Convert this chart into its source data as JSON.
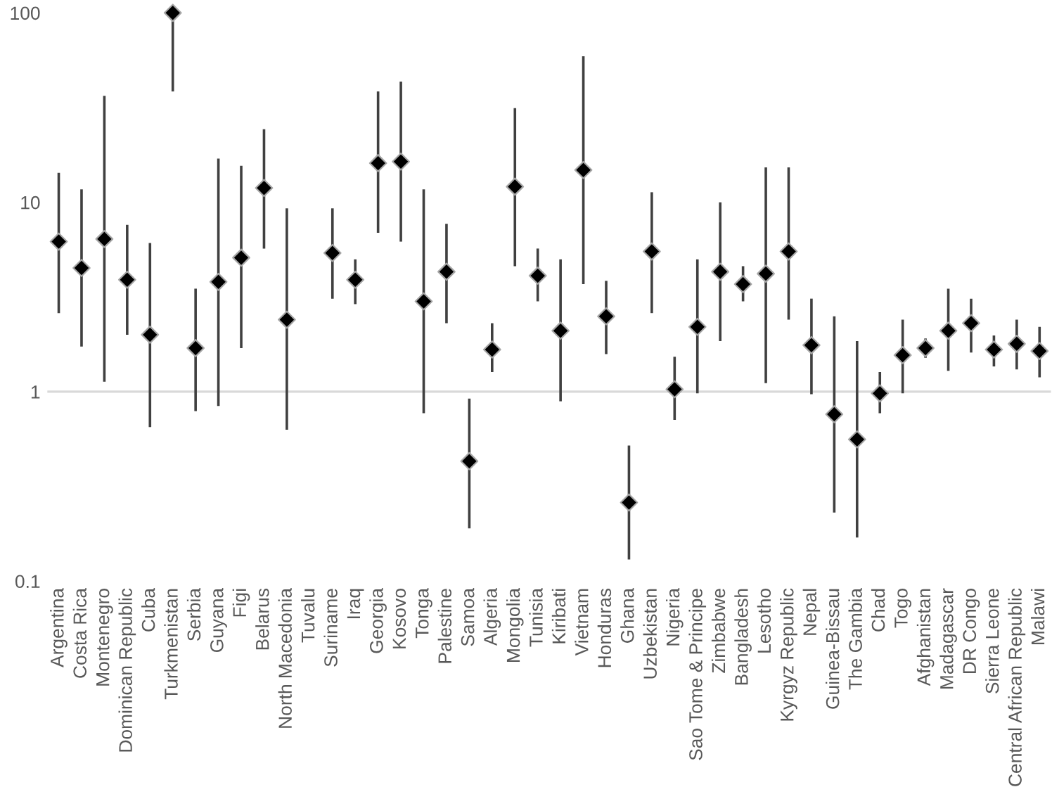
{
  "chart_data": {
    "type": "scatter",
    "categories": [
      "Argentina",
      "Costa Rica",
      "Montenegro",
      "Dominican Republic",
      "Cuba",
      "Turkmenistan",
      "Serbia",
      "Guyana",
      "Figi",
      "Belarus",
      "North Macedonia",
      "Tuvalu",
      "Suriname",
      "Iraq",
      "Georgia",
      "Kosovo",
      "Tonga",
      "Palestine",
      "Samoa",
      "Algeria",
      "Mongolia",
      "Tunisia",
      "Kiribati",
      "Vietnam",
      "Honduras",
      "Ghana",
      "Uzbekistan",
      "Nigeria",
      "Sao Tome & Principe",
      "Zimbabwe",
      "Bangladesh",
      "Lesotho",
      "Kyrgyz Republic",
      "Nepal",
      "Guinea-Bissau",
      "The Gambia",
      "Chad",
      "Togo",
      "Afghanistan",
      "Madagascar",
      "DR Congo",
      "Sierra Leone",
      "Central African Republic",
      "Malawi"
    ],
    "series": [
      {
        "color": "#000000",
        "values": [
          6.2,
          4.5,
          6.4,
          3.9,
          2.0,
          100,
          1.7,
          3.8,
          5.1,
          11.9,
          2.4,
          null,
          5.4,
          3.9,
          16.1,
          16.4,
          3.0,
          4.3,
          0.43,
          1.67,
          12.1,
          4.1,
          2.1,
          14.8,
          2.5,
          0.26,
          5.5,
          1.03,
          2.2,
          4.3,
          3.7,
          4.2,
          5.5,
          1.76,
          0.76,
          0.56,
          0.98,
          1.56,
          1.7,
          2.1,
          2.3,
          1.67,
          1.79,
          1.64
        ],
        "errors": [
          [
            2.6,
            14.3
          ],
          [
            1.73,
            11.7
          ],
          [
            1.13,
            36.5
          ],
          [
            2.0,
            7.6
          ],
          [
            0.65,
            6.1
          ],
          [
            38.5,
            100
          ],
          [
            0.79,
            3.5
          ],
          [
            0.84,
            17
          ],
          [
            1.7,
            15.6
          ],
          [
            5.7,
            24.3
          ],
          [
            0.63,
            9.3
          ],
          null,
          [
            3.1,
            9.3
          ],
          [
            2.9,
            5.0
          ],
          [
            6.9,
            38.5
          ],
          [
            6.2,
            43.4
          ],
          [
            0.77,
            11.7
          ],
          [
            2.3,
            7.7
          ],
          [
            0.19,
            0.92
          ],
          [
            1.27,
            2.3
          ],
          [
            4.6,
            31.4
          ],
          [
            3.0,
            5.7
          ],
          [
            0.89,
            5.0
          ],
          [
            3.7,
            59
          ],
          [
            1.58,
            3.85
          ],
          [
            0.13,
            0.52
          ],
          [
            2.6,
            11.3
          ],
          [
            0.71,
            1.53
          ],
          [
            0.98,
            5.0
          ],
          [
            1.85,
            10
          ],
          [
            3.0,
            4.6
          ],
          [
            1.11,
            15.3
          ],
          [
            2.4,
            15.3
          ],
          [
            0.97,
            3.1
          ],
          [
            0.23,
            2.5
          ],
          [
            0.17,
            1.85
          ],
          [
            0.77,
            1.27
          ],
          [
            0.98,
            2.4
          ],
          [
            1.51,
            1.91
          ],
          [
            1.29,
            3.5
          ],
          [
            1.61,
            3.1
          ],
          [
            1.36,
            1.98
          ],
          [
            1.31,
            2.4
          ],
          [
            1.19,
            2.2
          ]
        ]
      }
    ],
    "log": true,
    "ylim": [
      0.1,
      100
    ],
    "yticks": [
      0.1,
      1,
      10,
      100
    ],
    "grid": false,
    "legend": false,
    "marker": "diamond",
    "ref_lines": [
      {
        "axis": "y",
        "value": 1,
        "color": "#d9d9d9"
      }
    ]
  }
}
